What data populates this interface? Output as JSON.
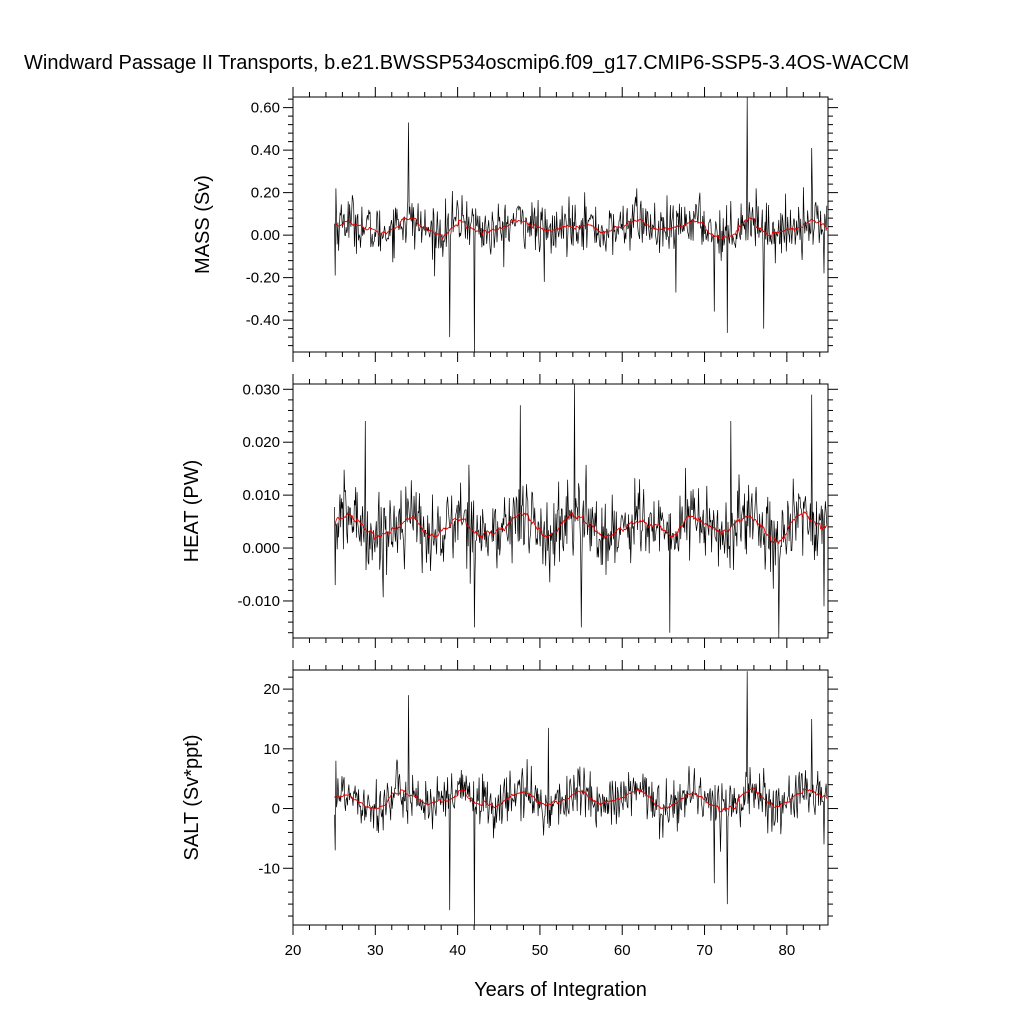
{
  "title": "Windward Passage II Transports, b.e21.BWSSP534oscmip6.f09_g17.CMIP6-SSP5-3.4OS-WACCM",
  "colors": {
    "raw": "#000000",
    "smoothed": "#e00000"
  },
  "chart_data": [
    {
      "type": "line",
      "ylabel": "MASS (Sv)",
      "xlabel": "",
      "xlim": [
        20,
        85
      ],
      "ylim": [
        -0.55,
        0.65
      ],
      "yticks": [
        -0.4,
        -0.2,
        0.0,
        0.2,
        0.4,
        0.6
      ],
      "ytick_labels": [
        "-0.40",
        "-0.20",
        "0.00",
        "0.20",
        "0.40",
        "0.60"
      ],
      "grid": false,
      "x_start": 25.04,
      "x_step": 0.0833,
      "series": [
        {
          "role": "raw",
          "approx_mean": 0.04,
          "approx_std": 0.08,
          "spikes": [
            [
              25.1,
              -0.19
            ],
            [
              25.2,
              0.22
            ],
            [
              34.0,
              0.53
            ],
            [
              39.0,
              -0.48
            ],
            [
              42.0,
              -0.55
            ],
            [
              50.5,
              -0.22
            ],
            [
              61.8,
              0.22
            ],
            [
              66.5,
              -0.27
            ],
            [
              71.2,
              -0.36
            ],
            [
              72.8,
              -0.46
            ],
            [
              75.2,
              0.65
            ],
            [
              77.2,
              -0.44
            ],
            [
              83.0,
              0.41
            ],
            [
              84.5,
              -0.18
            ]
          ]
        },
        {
          "role": "smoothed",
          "approx_mean": 0.04,
          "amplitude": 0.03
        }
      ]
    },
    {
      "type": "line",
      "ylabel": "HEAT (PW)",
      "xlabel": "",
      "xlim": [
        20,
        85
      ],
      "ylim": [
        -0.017,
        0.031
      ],
      "yticks": [
        -0.01,
        0.0,
        0.01,
        0.02,
        0.03
      ],
      "ytick_labels": [
        "-0.010",
        "0.000",
        "0.010",
        "0.020",
        "0.030"
      ],
      "grid": false,
      "x_start": 25.04,
      "x_step": 0.0833,
      "series": [
        {
          "role": "raw",
          "approx_mean": 0.004,
          "approx_std": 0.005,
          "spikes": [
            [
              25.1,
              -0.007
            ],
            [
              28.8,
              0.024
            ],
            [
              42.0,
              -0.015
            ],
            [
              47.6,
              0.027
            ],
            [
              54.2,
              0.031
            ],
            [
              55.0,
              -0.015
            ],
            [
              65.8,
              -0.016
            ],
            [
              73.2,
              0.024
            ],
            [
              79.0,
              -0.018
            ],
            [
              83.0,
              0.029
            ],
            [
              84.5,
              -0.011
            ]
          ]
        },
        {
          "role": "smoothed",
          "approx_mean": 0.0045,
          "amplitude": 0.0025
        }
      ]
    },
    {
      "type": "line",
      "ylabel": "SALT (Sv*ppt)",
      "xlabel": "Years of Integration",
      "xlim": [
        20,
        85
      ],
      "ylim": [
        -19.5,
        23.2
      ],
      "yticks": [
        -10,
        0,
        10,
        20
      ],
      "ytick_labels": [
        "-10",
        "0",
        "10",
        "20"
      ],
      "xticks": [
        20,
        30,
        40,
        50,
        60,
        70,
        80
      ],
      "xtick_labels": [
        "20",
        "30",
        "40",
        "50",
        "60",
        "70",
        "80"
      ],
      "grid": false,
      "x_start": 25.04,
      "x_step": 0.0833,
      "series": [
        {
          "role": "raw",
          "approx_mean": 1.5,
          "approx_std": 3.0,
          "spikes": [
            [
              25.1,
              -7
            ],
            [
              25.2,
              8
            ],
            [
              34.0,
              19
            ],
            [
              39.0,
              -17
            ],
            [
              42.0,
              -19.5
            ],
            [
              51.0,
              13.5
            ],
            [
              71.2,
              -12.5
            ],
            [
              72.8,
              -16
            ],
            [
              75.2,
              23
            ],
            [
              83.0,
              15
            ],
            [
              84.5,
              -6
            ]
          ]
        },
        {
          "role": "smoothed",
          "approx_mean": 1.5,
          "amplitude": 1.2
        }
      ]
    }
  ]
}
